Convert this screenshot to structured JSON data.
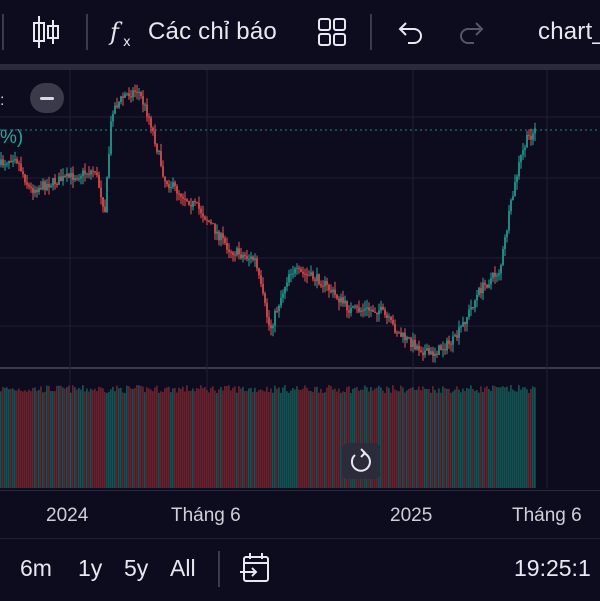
{
  "toolbar": {
    "indicators_label": "Các chỉ báo",
    "chart_name": "chart_",
    "icons": [
      "candlestick-icon",
      "fx-icon",
      "layout-grid-icon",
      "undo-icon",
      "redo-icon"
    ]
  },
  "chart": {
    "left_label": "%)",
    "axis_labels": [
      "2024",
      "Tháng 6",
      "2025",
      "Tháng 6"
    ]
  },
  "bottom": {
    "ranges": [
      "6m",
      "1y",
      "5y",
      "All"
    ],
    "time": "19:25:1"
  },
  "colors": {
    "up": "#26a69a",
    "down": "#ef5350",
    "background": "#0d0c1f",
    "dotted_line": "#26a69a"
  }
}
